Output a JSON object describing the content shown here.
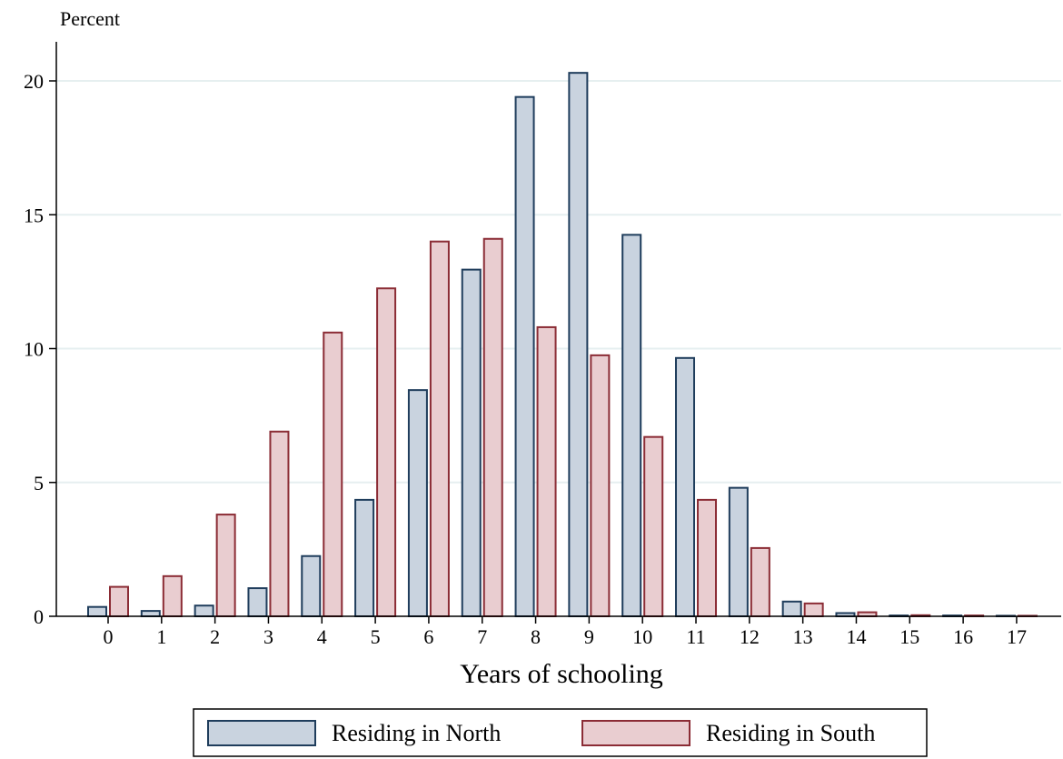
{
  "chart_data": {
    "type": "bar",
    "title": "",
    "xlabel": "Years of schooling",
    "ylabel": "Percent",
    "ylim": [
      0,
      21
    ],
    "yticks": [
      0,
      5,
      10,
      15,
      20
    ],
    "grid": true,
    "legend_position": "bottom",
    "categories": [
      "0",
      "1",
      "2",
      "3",
      "4",
      "5",
      "6",
      "7",
      "8",
      "9",
      "10",
      "11",
      "12",
      "13",
      "14",
      "15",
      "16",
      "17"
    ],
    "series": [
      {
        "name": "Residing in North",
        "fill": "#c9d3df",
        "stroke": "#1f3d5c",
        "values": [
          0.35,
          0.2,
          0.4,
          1.05,
          2.25,
          4.35,
          8.45,
          12.95,
          19.4,
          20.3,
          14.25,
          9.65,
          4.8,
          0.55,
          0.12,
          0.03,
          0.03,
          0.02
        ]
      },
      {
        "name": "Residing in South",
        "fill": "#e9cdd0",
        "stroke": "#8b2c35",
        "values": [
          1.1,
          1.5,
          3.8,
          6.9,
          10.6,
          12.25,
          14.0,
          14.1,
          10.8,
          9.75,
          6.7,
          4.35,
          2.55,
          0.48,
          0.15,
          0.04,
          0.03,
          0.02
        ]
      }
    ]
  },
  "colors": {
    "grid": "#e6eff0",
    "axis": "#000000",
    "legend_border": "#000000"
  }
}
